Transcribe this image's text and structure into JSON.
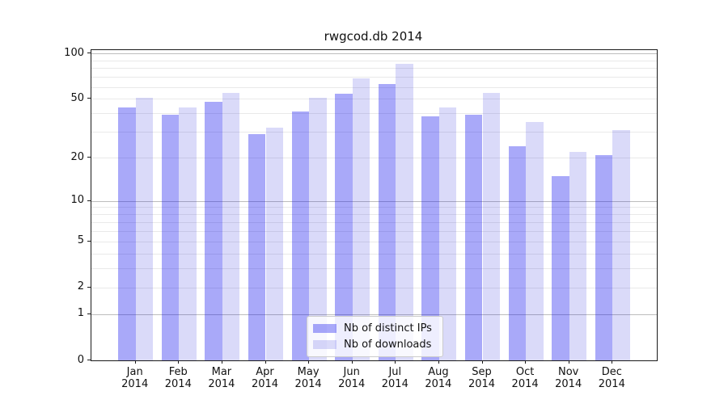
{
  "chart": {
    "title": "rwgcod.db 2014"
  },
  "chart_data": {
    "type": "bar",
    "title": "rwgcod.db 2014",
    "categories": [
      "Jan 2014",
      "Feb 2014",
      "Mar 2014",
      "Apr 2014",
      "May 2014",
      "Jun 2014",
      "Jul 2014",
      "Aug 2014",
      "Sep 2014",
      "Oct 2014",
      "Nov 2014",
      "Dec 2014"
    ],
    "series": [
      {
        "name": "Nb of distinct IPs",
        "values": [
          44,
          39,
          48,
          29,
          41,
          54,
          63,
          38,
          39,
          24,
          15,
          21
        ],
        "color": "#0808ee59",
        "flat_color": "#a9a9f9"
      },
      {
        "name": "Nb of downloads",
        "values": [
          51,
          44,
          55,
          32,
          51,
          68,
          85,
          44,
          55,
          35,
          22,
          31
        ],
        "color": "#0a0ad726",
        "flat_color": "#dadaf9"
      }
    ],
    "xlabel": "",
    "ylabel": "",
    "yscale": "log1p",
    "ylim": [
      0,
      105
    ],
    "yticks": [
      100,
      50,
      20,
      10,
      5,
      2,
      1,
      0
    ],
    "grid": {
      "major": [
        1,
        10,
        100
      ],
      "minor": [
        2,
        3,
        4,
        5,
        6,
        7,
        8,
        9,
        20,
        30,
        40,
        50,
        60,
        70,
        80,
        90
      ],
      "major_color": "#bdbdbd",
      "minor_color": "#e9e9e9"
    },
    "legend_position": "lower center"
  }
}
